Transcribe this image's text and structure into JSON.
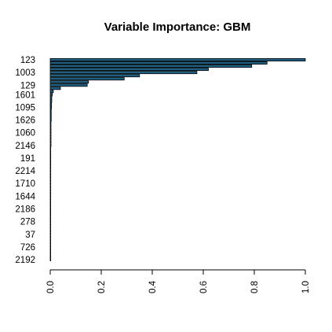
{
  "chart_data": {
    "type": "bar",
    "orientation": "horizontal",
    "title": "Variable Importance: GBM",
    "xlabel": "",
    "ylabel": "",
    "xlim": [
      0,
      1
    ],
    "x_ticks": [
      "0.0",
      "0.2",
      "0.4",
      "0.6",
      "0.8",
      "1.0"
    ],
    "bar_color": "#1f5f82",
    "categories": [
      "123",
      "",
      "",
      "",
      "1003",
      "",
      "",
      "",
      "129",
      "",
      "",
      "1601",
      "",
      "",
      "",
      "1095",
      "",
      "",
      "",
      "1626",
      "",
      "",
      "",
      "1060",
      "",
      "",
      "",
      "2146",
      "",
      "",
      "",
      "191",
      "",
      "",
      "",
      "2214",
      "",
      "",
      "",
      "1710",
      "",
      "",
      "",
      "1644",
      "",
      "",
      "",
      "2186",
      "",
      "",
      "",
      "278",
      "",
      "",
      "",
      "37",
      "",
      "",
      "",
      "726",
      "",
      "",
      "",
      "2192"
    ],
    "values": [
      1.0,
      0.85,
      0.79,
      0.62,
      0.575,
      0.35,
      0.29,
      0.15,
      0.145,
      0.04,
      0.012,
      0.008,
      0.006,
      0.006,
      0.005,
      0.005,
      0.004,
      0.004,
      0.004,
      0.004,
      0.003,
      0.003,
      0.003,
      0.003,
      0.003,
      0.003,
      0.003,
      0.003,
      0.002,
      0.002,
      0.002,
      0.002,
      0.002,
      0.002,
      0.002,
      0.002,
      0.002,
      0.002,
      0.002,
      0.002,
      0.002,
      0.002,
      0.002,
      0.002,
      0.001,
      0.001,
      0.001,
      0.001,
      0.001,
      0.001,
      0.001,
      0.001,
      0.001,
      0.001,
      0.001,
      0.001,
      0.001,
      0.001,
      0.001,
      0.001,
      0.001,
      0.001,
      0.001,
      0.001
    ]
  }
}
